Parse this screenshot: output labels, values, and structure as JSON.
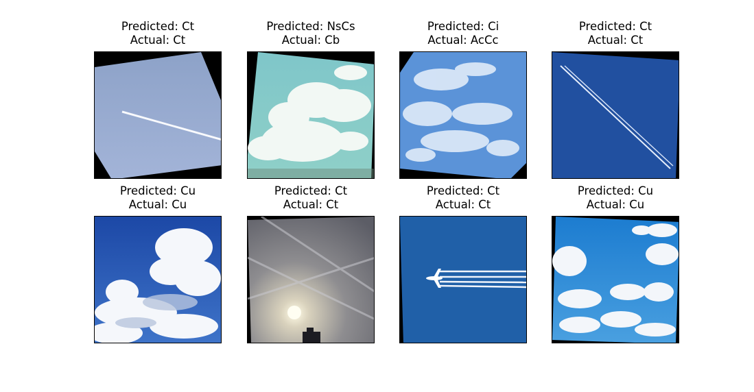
{
  "figure": {
    "panels": [
      {
        "predicted": "Predicted: Ct",
        "actual": "Actual: Ct",
        "scene": "sky-with-contrail"
      },
      {
        "predicted": "Predicted: NsCs",
        "actual": "Actual: Cb",
        "scene": "cumulonimbus-tower"
      },
      {
        "predicted": "Predicted: Ci",
        "actual": "Actual: AcCc",
        "scene": "altocumulus-patches"
      },
      {
        "predicted": "Predicted: Ct",
        "actual": "Actual: Ct",
        "scene": "double-contrail-blue-sky"
      },
      {
        "predicted": "Predicted: Cu",
        "actual": "Actual: Cu",
        "scene": "cumulus-clouds"
      },
      {
        "predicted": "Predicted: Ct",
        "actual": "Actual: Ct",
        "scene": "hazy-sun-contrails"
      },
      {
        "predicted": "Predicted: Ct",
        "actual": "Actual: Ct",
        "scene": "airplane-contrail"
      },
      {
        "predicted": "Predicted: Cu",
        "actual": "Actual: Cu",
        "scene": "scattered-cumulus"
      }
    ]
  }
}
